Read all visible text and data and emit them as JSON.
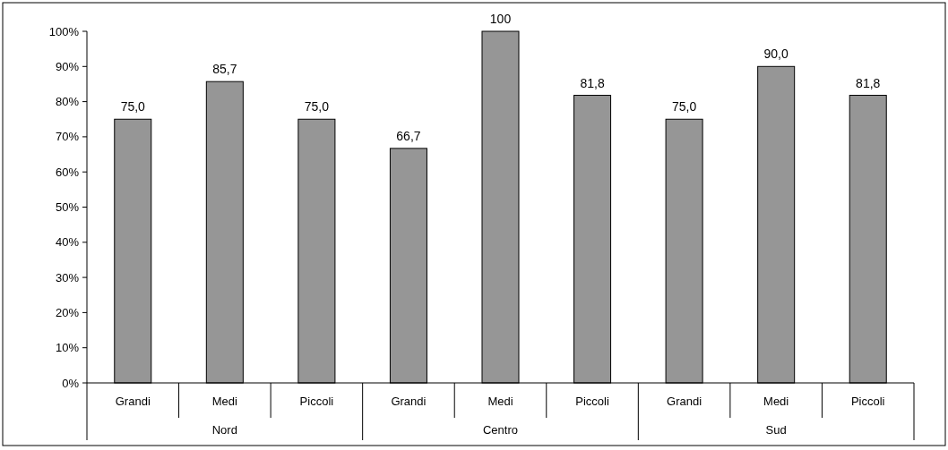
{
  "chart_data": {
    "type": "bar",
    "categories": [
      "Grandi",
      "Medi",
      "Piccoli",
      "Grandi",
      "Medi",
      "Piccoli",
      "Grandi",
      "Medi",
      "Piccoli"
    ],
    "values": [
      75.0,
      85.7,
      75.0,
      66.7,
      100,
      81.8,
      75.0,
      90.0,
      81.8
    ],
    "value_labels": [
      "75,0",
      "85,7",
      "75,0",
      "66,7",
      "100",
      "81,8",
      "75,0",
      "90,0",
      "81,8"
    ],
    "color": "#969696",
    "annotations": [
      "Nord",
      "Centro",
      "Sud"
    ],
    "ylim": [
      0,
      100
    ],
    "yticks": [
      {
        "value": 0,
        "label": "0%"
      },
      {
        "value": 10,
        "label": "10%"
      },
      {
        "value": 20,
        "label": "20%"
      },
      {
        "value": 30,
        "label": "30%"
      },
      {
        "value": 40,
        "label": "40%"
      },
      {
        "value": 50,
        "label": "50%"
      },
      {
        "value": 60,
        "label": "60%"
      },
      {
        "value": 70,
        "label": "70%"
      },
      {
        "value": 80,
        "label": "80%"
      },
      {
        "value": 90,
        "label": "90%"
      },
      {
        "value": 100,
        "label": "100%"
      }
    ],
    "grid": false
  }
}
